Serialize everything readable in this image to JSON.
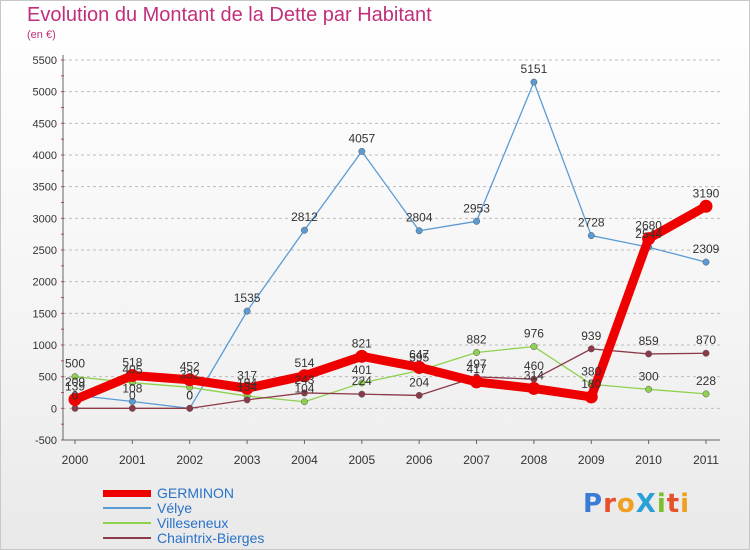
{
  "header": {
    "title": "Evolution du Montant de la Dette par Habitant",
    "subtitle": "(en €)"
  },
  "logo": {
    "text": "ProXiti",
    "letter_colors": [
      "#3a7bd5",
      "#e6512b",
      "#f0a020",
      "#2aa0d8",
      "#7cbf2a",
      "#e6512b",
      "#f0a020"
    ]
  },
  "chart_data": {
    "type": "line",
    "title": "Evolution du Montant de la Dette par Habitant",
    "subtitle": "(en €)",
    "xlabel": "",
    "ylabel": "",
    "categories": [
      "2000",
      "2001",
      "2002",
      "2003",
      "2004",
      "2005",
      "2006",
      "2007",
      "2008",
      "2009",
      "2010",
      "2011"
    ],
    "ylim": [
      -500,
      5500
    ],
    "yticks": [
      "-500",
      "0",
      "500",
      "1000",
      "1500",
      "2000",
      "2500",
      "3000",
      "3500",
      "4000",
      "4500",
      "5000",
      "5500"
    ],
    "grid": "horizontal dashed",
    "legend_position": "bottom-left",
    "series": [
      {
        "name": "GERMINON",
        "color": "#ee0000",
        "style": "thick",
        "values": [
          139,
          518,
          452,
          317,
          514,
          821,
          647,
          417,
          314,
          180,
          2680,
          3190
        ],
        "labels": [
          "139",
          "518",
          "452",
          "317",
          "514",
          "821",
          "647",
          "417",
          "314",
          "180",
          "2680",
          "3190"
        ]
      },
      {
        "name": "Vélye",
        "color": "#5b9bd5",
        "style": "thin",
        "values": [
          209,
          108,
          0,
          1535,
          2812,
          4057,
          2804,
          2953,
          5151,
          2728,
          2544,
          2309
        ],
        "labels": [
          "209",
          "108",
          "0",
          "1535",
          "2812",
          "4057",
          "2804",
          "2953",
          "5151",
          "2728",
          "2544",
          "2309"
        ]
      },
      {
        "name": "Villeseneux",
        "color": "#8fd14f",
        "style": "thin",
        "values": [
          500,
          405,
          332,
          194,
          104,
          401,
          595,
          882,
          976,
          380,
          300,
          228
        ],
        "labels": [
          "500",
          "405",
          "332",
          "194",
          "104",
          "401",
          "595",
          "882",
          "976",
          "380",
          "300",
          "228"
        ]
      },
      {
        "name": "Chaintrix-Bierges",
        "color": "#8b3a4a",
        "style": "thin",
        "values": [
          0,
          0,
          0,
          134,
          243,
          224,
          204,
          497,
          460,
          939,
          859,
          870
        ],
        "labels": [
          "0",
          "0",
          "0",
          "134",
          "243",
          "224",
          "204",
          "497",
          "460",
          "939",
          "859",
          "870"
        ]
      }
    ]
  }
}
